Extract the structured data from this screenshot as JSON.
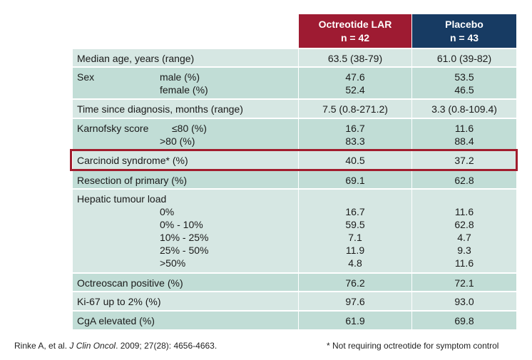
{
  "headers": {
    "col1_line1": "Octreotide LAR",
    "col1_line2": "n = 42",
    "col2_line1": "Placebo",
    "col2_line2": "n = 43"
  },
  "rows": {
    "age": {
      "label": "Median age, years (range)",
      "v1": "63.5 (38-79)",
      "v2": "61.0 (39-82)"
    },
    "sex": {
      "label": "Sex",
      "sub1": "male (%)",
      "sub2": "female (%)",
      "v1a": "47.6",
      "v1b": "52.4",
      "v2a": "53.5",
      "v2b": "46.5"
    },
    "time": {
      "label": "Time since diagnosis, months (range)",
      "v1": "7.5 (0.8-271.2)",
      "v2": "3.3 (0.8-109.4)"
    },
    "karnofsky": {
      "label": "Karnofsky score",
      "sub1": "≤80 (%)",
      "sub2": ">80 (%)",
      "v1a": "16.7",
      "v1b": "83.3",
      "v2a": "11.6",
      "v2b": "88.4"
    },
    "carcinoid": {
      "label": "Carcinoid syndrome* (%)",
      "v1": "40.5",
      "v2": "37.2"
    },
    "resection": {
      "label": "Resection of primary (%)",
      "v1": "69.1",
      "v2": "62.8"
    },
    "hepatic": {
      "label": "Hepatic tumour load",
      "subs": [
        "0%",
        "0% - 10%",
        "10% - 25%",
        "25% - 50%",
        ">50%"
      ],
      "v1": [
        "16.7",
        "59.5",
        "7.1",
        "11.9",
        "4.8"
      ],
      "v2": [
        "11.6",
        "62.8",
        "4.7",
        "9.3",
        "11.6"
      ]
    },
    "octreoscan": {
      "label": "Octreoscan positive (%)",
      "v1": "76.2",
      "v2": "72.1"
    },
    "ki67": {
      "label": "Ki-67 up to 2% (%)",
      "v1": "97.6",
      "v2": "93.0"
    },
    "cga": {
      "label": "CgA elevated (%)",
      "v1": "61.9",
      "v2": "69.8"
    }
  },
  "footer": {
    "citation_pre": "Rinke A, et al. ",
    "citation_journal": "J Clin Oncol",
    "citation_post": ". 2009; 27(28): 4656-4663.",
    "footnote": "* Not requiring octreotide for symptom control"
  }
}
